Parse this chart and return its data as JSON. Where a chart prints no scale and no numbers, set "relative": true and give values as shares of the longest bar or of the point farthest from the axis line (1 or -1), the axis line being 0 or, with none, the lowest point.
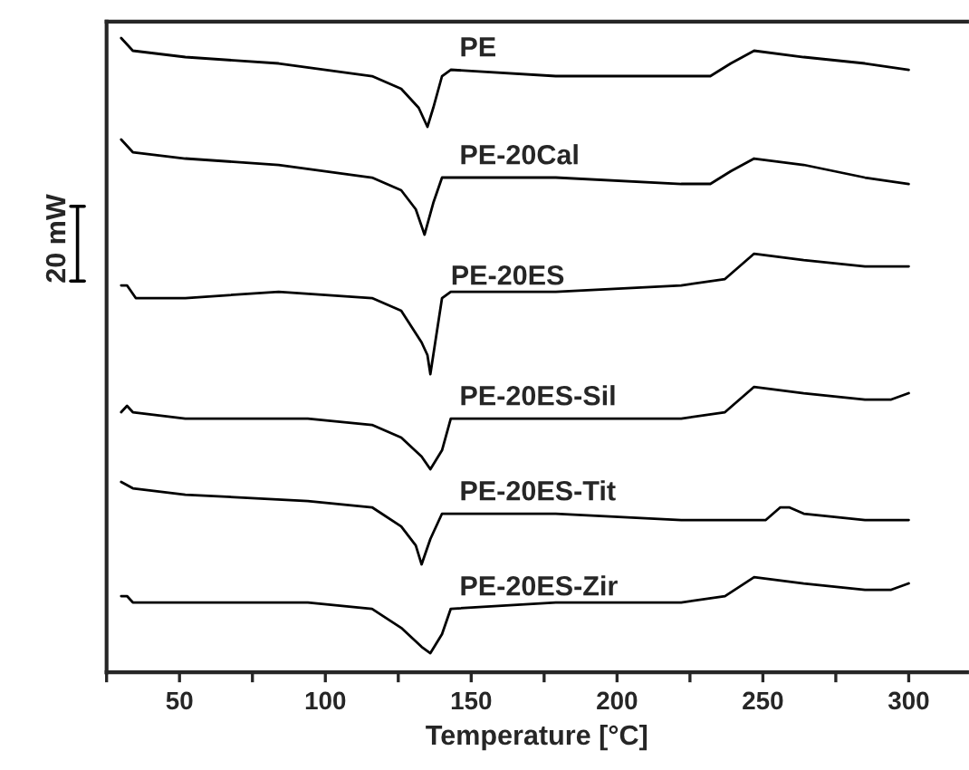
{
  "chart_data": {
    "type": "line",
    "relative": true,
    "xlabel": "Temperature [°C]",
    "ylabel": "20 mW",
    "grid": false,
    "legend": false,
    "marker": "none",
    "line_style": "solid",
    "xlim": [
      25,
      320
    ],
    "xticks": [
      {
        "value": 25,
        "label": null
      },
      50,
      {
        "value": 75,
        "label": null
      },
      100,
      {
        "value": 125,
        "label": null
      },
      150,
      {
        "value": 175,
        "label": null
      },
      200,
      {
        "value": 225,
        "label": null
      },
      250,
      {
        "value": 275,
        "label": null
      },
      300
    ],
    "series": [
      {
        "name": "PE",
        "color": "#000000",
        "x": [
          30,
          34,
          52,
          84,
          116,
          126,
          132,
          135,
          137,
          140,
          143,
          179,
          222,
          232,
          239,
          247,
          264,
          285,
          300
        ],
        "values": [
          1.0,
          0.98,
          0.97,
          0.96,
          0.94,
          0.92,
          0.89,
          0.86,
          0.89,
          0.94,
          0.95,
          0.94,
          0.94,
          0.94,
          0.96,
          0.98,
          0.97,
          0.96,
          0.95
        ]
      },
      {
        "name": "PE-20Cal",
        "color": "#000000",
        "x": [
          30,
          34,
          52,
          84,
          116,
          126,
          131,
          134,
          137,
          140,
          143,
          179,
          222,
          232,
          239,
          247,
          264,
          285,
          300
        ],
        "values": [
          0.84,
          0.82,
          0.81,
          0.8,
          0.78,
          0.76,
          0.73,
          0.69,
          0.74,
          0.78,
          0.78,
          0.78,
          0.77,
          0.77,
          0.79,
          0.81,
          0.8,
          0.78,
          0.77
        ]
      },
      {
        "name": "PE-20ES",
        "color": "#000000",
        "x": [
          30,
          32,
          35,
          52,
          84,
          116,
          126,
          133,
          135,
          136,
          140,
          143,
          179,
          222,
          237,
          247,
          264,
          285,
          300
        ],
        "values": [
          0.61,
          0.61,
          0.59,
          0.59,
          0.6,
          0.59,
          0.57,
          0.52,
          0.5,
          0.47,
          0.59,
          0.6,
          0.6,
          0.61,
          0.62,
          0.66,
          0.65,
          0.64,
          0.64
        ]
      },
      {
        "name": "PE-20ES-Sil",
        "color": "#000000",
        "x": [
          30,
          32,
          34,
          52,
          94,
          116,
          126,
          133,
          136,
          140,
          143,
          179,
          222,
          237,
          247,
          264,
          285,
          294,
          300
        ],
        "values": [
          0.41,
          0.42,
          0.41,
          0.4,
          0.4,
          0.39,
          0.37,
          0.34,
          0.32,
          0.35,
          0.4,
          0.4,
          0.4,
          0.41,
          0.45,
          0.44,
          0.43,
          0.43,
          0.44
        ]
      },
      {
        "name": "PE-20ES-Tit",
        "color": "#000000",
        "x": [
          30,
          34,
          52,
          94,
          116,
          126,
          131,
          133,
          136,
          140,
          143,
          179,
          222,
          251,
          256,
          259,
          264,
          285,
          300
        ],
        "values": [
          0.3,
          0.29,
          0.28,
          0.27,
          0.26,
          0.23,
          0.2,
          0.17,
          0.21,
          0.25,
          0.25,
          0.25,
          0.24,
          0.24,
          0.26,
          0.26,
          0.25,
          0.24,
          0.24
        ]
      },
      {
        "name": "PE-20ES-Zir",
        "color": "#000000",
        "x": [
          30,
          32,
          34,
          52,
          94,
          116,
          126,
          133,
          136,
          140,
          143,
          179,
          222,
          237,
          247,
          264,
          285,
          294,
          300
        ],
        "values": [
          0.12,
          0.12,
          0.11,
          0.11,
          0.11,
          0.1,
          0.07,
          0.04,
          0.03,
          0.06,
          0.1,
          0.11,
          0.11,
          0.12,
          0.15,
          0.14,
          0.13,
          0.13,
          0.14
        ]
      }
    ]
  }
}
